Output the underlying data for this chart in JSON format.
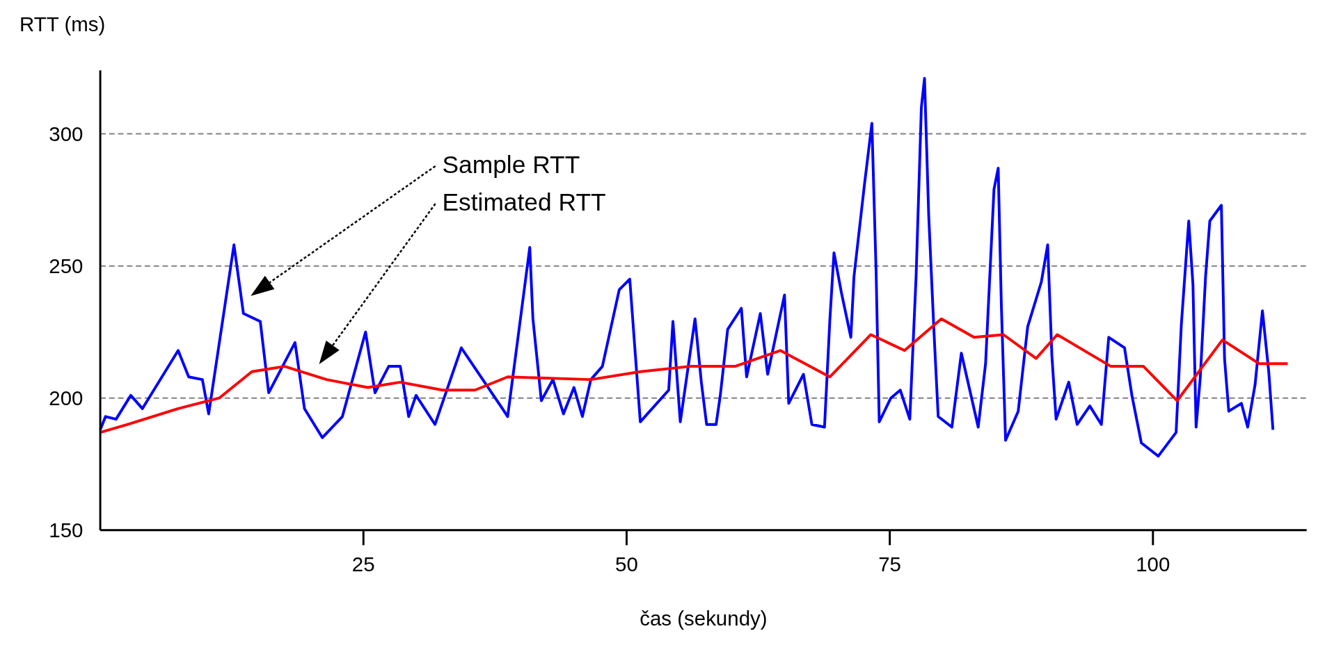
{
  "chart_data": {
    "type": "line",
    "xlabel": "čas (sekundy)",
    "ylabel": "RTT (ms)",
    "xlim": [
      0,
      114.6
    ],
    "ylim": [
      150,
      324
    ],
    "xticks": [
      25,
      50,
      75,
      100
    ],
    "yticks": [
      150,
      200,
      250,
      300
    ],
    "grid": "y",
    "line_style": "solid",
    "marker": "none",
    "annotations": [
      "Sample RTT",
      "Estimated RTT"
    ],
    "series": [
      {
        "color": "#0000ff",
        "x": [
          0,
          0.5,
          1.5,
          2.9,
          4,
          7.4,
          8.4,
          9.7,
          10.3,
          12.7,
          13.6,
          15.2,
          16,
          18.5,
          19.4,
          21.1,
          23,
          25.2,
          26.1,
          27.4,
          28.5,
          29.3,
          30,
          31.8,
          34.3,
          38.2,
          38.7,
          40.8,
          41.1,
          41.9,
          43,
          44,
          45,
          45.8,
          46.6,
          47.7,
          49.3,
          50.3,
          51.3,
          54,
          54.4,
          55.1,
          56.5,
          57.1,
          57.6,
          58.5,
          58.9,
          59.6,
          60.9,
          61.4,
          62.7,
          63.4,
          65,
          65.4,
          66.8,
          67.6,
          68.8,
          69.3,
          69.7,
          70.4,
          71.3,
          71.6,
          72.6,
          73.3,
          73.7,
          74,
          75.1,
          76,
          76.9,
          77.5,
          78,
          78.3,
          78.7,
          79.2,
          79.6,
          80.9,
          81.8,
          83.4,
          84.1,
          84.9,
          85.3,
          85.6,
          86,
          87.2,
          88.1,
          89.4,
          90,
          90.4,
          90.8,
          92,
          92.8,
          94,
          95.1,
          95.8,
          97.3,
          98,
          98.9,
          100.5,
          102.2,
          102.7,
          103.4,
          103.8,
          104.1,
          104.5,
          105,
          105.4,
          106.5,
          106.8,
          107.2,
          108.4,
          109,
          109.7,
          110.4,
          111,
          111.4
        ],
        "values": [
          188,
          193,
          192,
          201,
          196,
          218,
          208,
          207,
          194,
          258,
          232,
          229,
          202,
          221,
          196,
          185,
          193,
          225,
          202,
          212,
          212,
          193,
          201,
          190,
          219,
          196,
          193,
          257,
          230,
          199,
          207,
          194,
          204,
          193,
          207,
          212,
          241,
          245,
          191,
          203,
          229,
          191,
          230,
          206,
          190,
          190,
          201,
          226,
          234,
          208,
          232,
          209,
          239,
          198,
          209,
          190,
          189,
          229,
          255,
          240,
          223,
          246,
          281,
          304,
          248,
          191,
          200,
          203,
          192,
          246,
          310,
          321,
          269,
          225,
          193,
          189,
          217,
          189,
          213,
          279,
          287,
          235,
          184,
          195,
          227,
          244,
          258,
          216,
          192,
          206,
          190,
          197,
          190,
          223,
          219,
          201,
          183,
          178,
          187,
          228,
          267,
          243,
          189,
          208,
          246,
          267,
          273,
          215,
          195,
          198,
          189,
          205,
          233,
          210,
          188
        ]
      },
      {
        "color": "#ff0000",
        "x": [
          0,
          2.6,
          7.4,
          11.3,
          14.4,
          17.5,
          21.5,
          25.4,
          28.5,
          32.5,
          35.6,
          38.7,
          46.6,
          51.3,
          56,
          60.3,
          64.6,
          69.3,
          73.2,
          76.4,
          79.9,
          83,
          85.8,
          88.9,
          90.9,
          96,
          99.1,
          102.3,
          106.6,
          110.1,
          112.8
        ],
        "values": [
          187,
          190,
          196,
          200,
          210,
          212,
          207,
          204,
          206,
          203,
          203,
          208,
          207,
          210,
          212,
          212,
          218,
          208,
          224,
          218,
          230,
          223,
          224,
          215,
          224,
          212,
          212,
          199,
          222,
          213,
          213
        ]
      }
    ]
  }
}
